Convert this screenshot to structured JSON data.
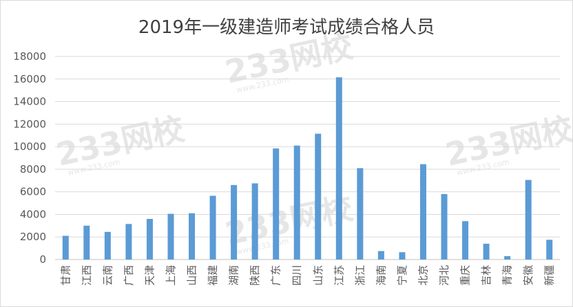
{
  "chart_data": {
    "type": "bar",
    "title": "2019年一级建造师考试成绩合格人员",
    "xlabel": "",
    "ylabel": "",
    "ylim": [
      0,
      18000
    ],
    "yticks": [
      0,
      2000,
      4000,
      6000,
      8000,
      10000,
      12000,
      14000,
      16000,
      18000
    ],
    "grid": true,
    "legend": "none",
    "bar_color": "#5b9bd5",
    "categories": [
      "甘肃",
      "江西",
      "云南",
      "广西",
      "天津",
      "上海",
      "山西",
      "福建",
      "湖南",
      "陕西",
      "广东",
      "四川",
      "山东",
      "江苏",
      "浙江",
      "海南",
      "宁夏",
      "北京",
      "河北",
      "重庆",
      "吉林",
      "青海",
      "安徽",
      "新疆"
    ],
    "values": [
      2100,
      3000,
      2450,
      3150,
      3600,
      4050,
      4100,
      5650,
      6600,
      6750,
      9850,
      10100,
      11150,
      16150,
      8100,
      750,
      650,
      8450,
      5800,
      3400,
      1400,
      300,
      7050,
      1750
    ]
  },
  "watermark": {
    "text": "233网校",
    "sub": "www.233.com"
  }
}
